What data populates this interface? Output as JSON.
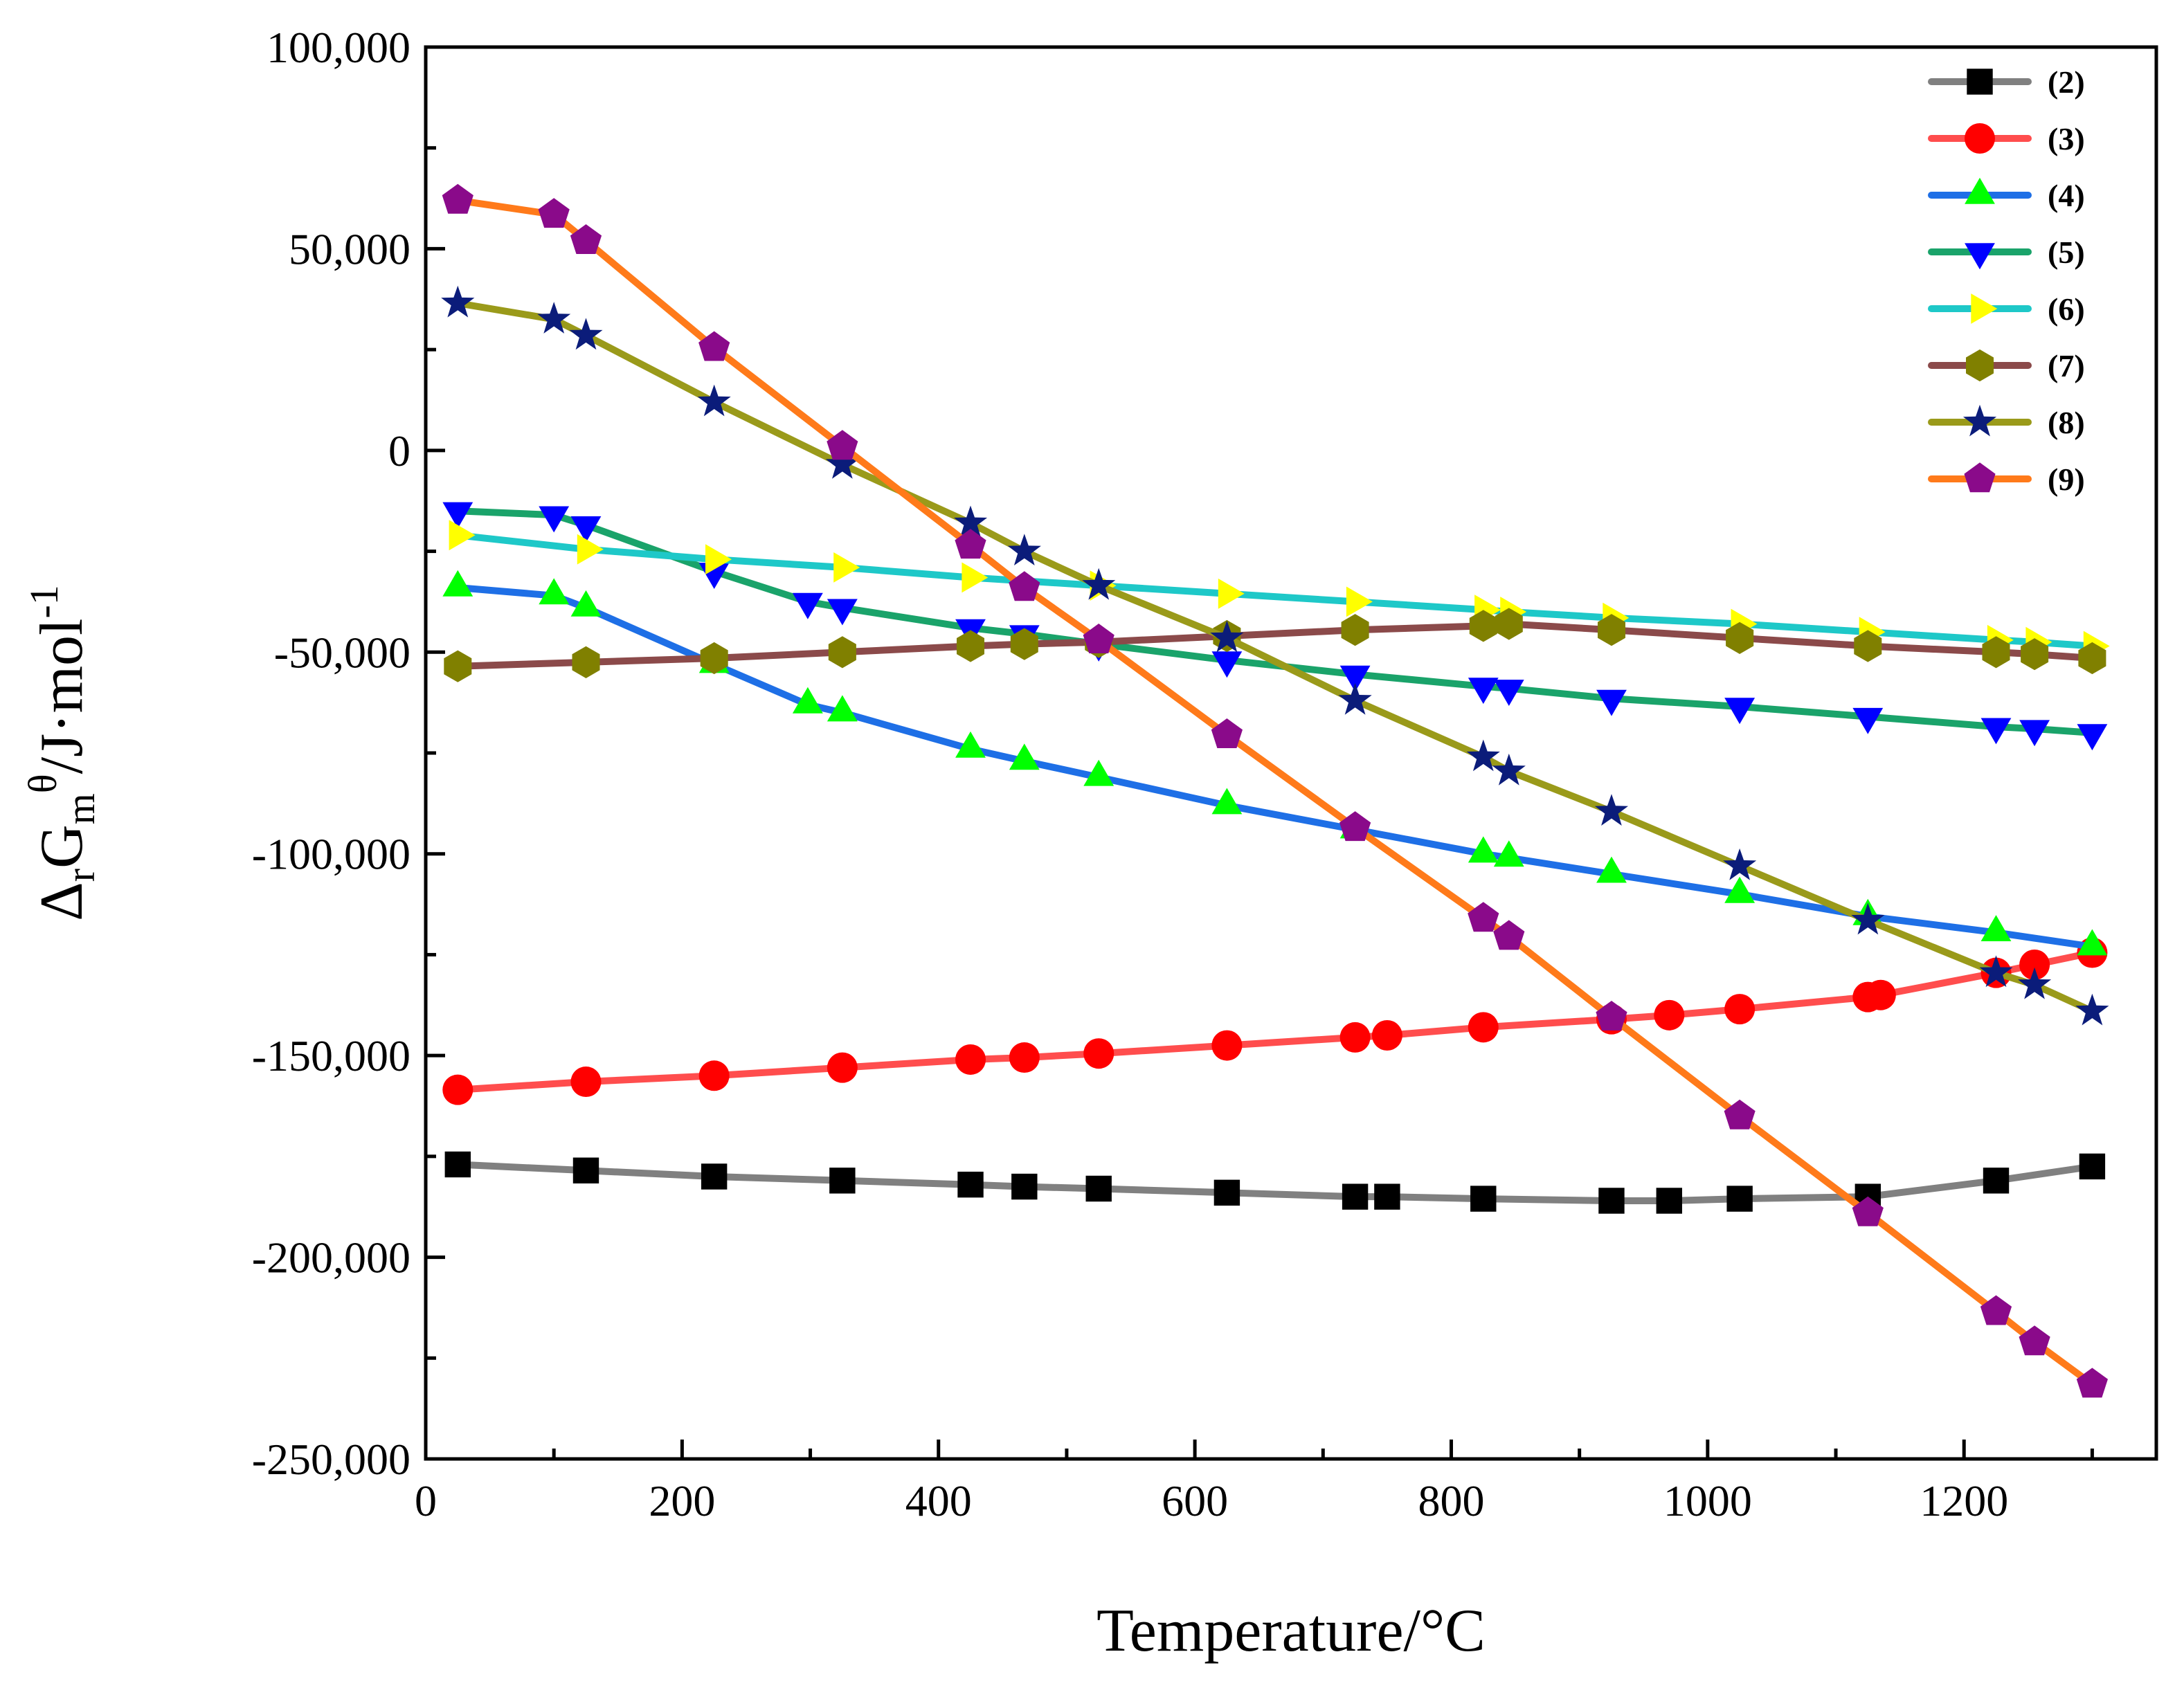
{
  "chart_data": {
    "type": "line",
    "title": "",
    "xlabel": "Temperature/°C",
    "ylabel": {
      "delta": "Δ",
      "sub_r": "r",
      "G": "G",
      "sub_m": "m",
      "sup_theta": "θ",
      "unit": "/J·mol",
      "sup_exp": "-1"
    },
    "xlim": [
      0,
      1350
    ],
    "ylim": [
      -250000,
      100000
    ],
    "xticks": [
      0,
      200,
      400,
      600,
      800,
      1000,
      1200
    ],
    "xtick_labels": [
      "0",
      "200",
      "400",
      "600",
      "800",
      "1000",
      "1200"
    ],
    "yticks": [
      100000,
      50000,
      0,
      -50000,
      -100000,
      -150000,
      -200000,
      -250000
    ],
    "ytick_labels": [
      "100,000",
      "50,000",
      "0",
      "-50,000",
      "-100,000",
      "-150,000",
      "-200,000",
      "-250,000"
    ],
    "legend_position": "top-right",
    "series": [
      {
        "name": "(2)",
        "line_color": "#808080",
        "marker": "square",
        "marker_color": "#000000",
        "points": [
          [
            25,
            -177000
          ],
          [
            125,
            -178500
          ],
          [
            225,
            -180000
          ],
          [
            325,
            -181000
          ],
          [
            425,
            -182000
          ],
          [
            467,
            -182500
          ],
          [
            525,
            -183000
          ],
          [
            625,
            -184000
          ],
          [
            725,
            -185000
          ],
          [
            750,
            -185000
          ],
          [
            825,
            -185500
          ],
          [
            925,
            -186000
          ],
          [
            970,
            -186000
          ],
          [
            1025,
            -185500
          ],
          [
            1125,
            -185000
          ],
          [
            1225,
            -181000
          ],
          [
            1300,
            -177500
          ]
        ]
      },
      {
        "name": "(3)",
        "line_color": "#ff4d4d",
        "marker": "circle",
        "marker_color": "#ff0000",
        "points": [
          [
            25,
            -158500
          ],
          [
            125,
            -156500
          ],
          [
            225,
            -155000
          ],
          [
            325,
            -153000
          ],
          [
            425,
            -151000
          ],
          [
            467,
            -150500
          ],
          [
            525,
            -149500
          ],
          [
            625,
            -147500
          ],
          [
            725,
            -145500
          ],
          [
            750,
            -145000
          ],
          [
            825,
            -143000
          ],
          [
            925,
            -141000
          ],
          [
            970,
            -140000
          ],
          [
            1025,
            -138500
          ],
          [
            1125,
            -135500
          ],
          [
            1135,
            -135000
          ],
          [
            1225,
            -129500
          ],
          [
            1255,
            -127500
          ],
          [
            1300,
            -124500
          ]
        ]
      },
      {
        "name": "(4)",
        "line_color": "#1e6fe6",
        "marker": "triangle-up",
        "marker_color": "#00ff00",
        "points": [
          [
            25,
            -34000
          ],
          [
            100,
            -36000
          ],
          [
            125,
            -39000
          ],
          [
            225,
            -53000
          ],
          [
            298,
            -63000
          ],
          [
            325,
            -65000
          ],
          [
            425,
            -74000
          ],
          [
            467,
            -77000
          ],
          [
            525,
            -81000
          ],
          [
            625,
            -88000
          ],
          [
            725,
            -94000
          ],
          [
            825,
            -100000
          ],
          [
            845,
            -101000
          ],
          [
            925,
            -105000
          ],
          [
            1025,
            -110000
          ],
          [
            1125,
            -115500
          ],
          [
            1225,
            -119500
          ],
          [
            1300,
            -123000
          ]
        ]
      },
      {
        "name": "(5)",
        "line_color": "#1aa36a",
        "marker": "triangle-down",
        "marker_color": "#0000ff",
        "points": [
          [
            25,
            -15000
          ],
          [
            100,
            -16000
          ],
          [
            125,
            -18500
          ],
          [
            225,
            -30000
          ],
          [
            298,
            -37500
          ],
          [
            325,
            -39000
          ],
          [
            425,
            -44000
          ],
          [
            467,
            -45500
          ],
          [
            525,
            -48000
          ],
          [
            625,
            -52000
          ],
          [
            725,
            -55500
          ],
          [
            825,
            -58500
          ],
          [
            845,
            -59000
          ],
          [
            925,
            -61500
          ],
          [
            1025,
            -63500
          ],
          [
            1125,
            -66000
          ],
          [
            1225,
            -68500
          ],
          [
            1255,
            -69000
          ],
          [
            1300,
            -70000
          ]
        ]
      },
      {
        "name": "(6)",
        "line_color": "#1ec8c8",
        "marker": "triangle-right",
        "marker_color": "#ffff00",
        "points": [
          [
            25,
            -21000
          ],
          [
            125,
            -24500
          ],
          [
            225,
            -27000
          ],
          [
            325,
            -29000
          ],
          [
            425,
            -31500
          ],
          [
            525,
            -33500
          ],
          [
            625,
            -35500
          ],
          [
            725,
            -37500
          ],
          [
            825,
            -39500
          ],
          [
            845,
            -40000
          ],
          [
            925,
            -41500
          ],
          [
            1025,
            -43000
          ],
          [
            1125,
            -45000
          ],
          [
            1225,
            -47000
          ],
          [
            1255,
            -47500
          ],
          [
            1300,
            -48500
          ]
        ]
      },
      {
        "name": "(7)",
        "line_color": "#8b4a4a",
        "marker": "hexagon",
        "marker_color": "#808000",
        "points": [
          [
            25,
            -53500
          ],
          [
            125,
            -52500
          ],
          [
            225,
            -51500
          ],
          [
            325,
            -50000
          ],
          [
            425,
            -48500
          ],
          [
            467,
            -48000
          ],
          [
            525,
            -47500
          ],
          [
            625,
            -46000
          ],
          [
            725,
            -44500
          ],
          [
            825,
            -43500
          ],
          [
            845,
            -43000
          ],
          [
            925,
            -44500
          ],
          [
            1025,
            -46500
          ],
          [
            1125,
            -48500
          ],
          [
            1225,
            -50000
          ],
          [
            1255,
            -50500
          ],
          [
            1300,
            -51500
          ]
        ]
      },
      {
        "name": "(8)",
        "line_color": "#9a9a1a",
        "marker": "star",
        "marker_color": "#0b1c7a",
        "points": [
          [
            25,
            36500
          ],
          [
            100,
            32500
          ],
          [
            125,
            28500
          ],
          [
            225,
            12000
          ],
          [
            325,
            -3500
          ],
          [
            425,
            -18000
          ],
          [
            467,
            -25000
          ],
          [
            525,
            -33500
          ],
          [
            625,
            -46500
          ],
          [
            725,
            -62000
          ],
          [
            825,
            -76000
          ],
          [
            845,
            -79500
          ],
          [
            925,
            -89500
          ],
          [
            1025,
            -103000
          ],
          [
            1125,
            -116500
          ],
          [
            1225,
            -129500
          ],
          [
            1255,
            -132500
          ],
          [
            1300,
            -139000
          ]
        ]
      },
      {
        "name": "(9)",
        "line_color": "#ff7a1a",
        "marker": "pentagon",
        "marker_color": "#8a0a8a",
        "points": [
          [
            25,
            62000
          ],
          [
            100,
            58500
          ],
          [
            125,
            52000
          ],
          [
            225,
            25500
          ],
          [
            325,
            1000
          ],
          [
            425,
            -23500
          ],
          [
            467,
            -34000
          ],
          [
            525,
            -47000
          ],
          [
            625,
            -70500
          ],
          [
            725,
            -93500
          ],
          [
            825,
            -116000
          ],
          [
            845,
            -120500
          ],
          [
            925,
            -140500
          ],
          [
            1025,
            -165000
          ],
          [
            1125,
            -189000
          ],
          [
            1225,
            -213500
          ],
          [
            1255,
            -221000
          ],
          [
            1300,
            -231500
          ]
        ]
      }
    ]
  }
}
